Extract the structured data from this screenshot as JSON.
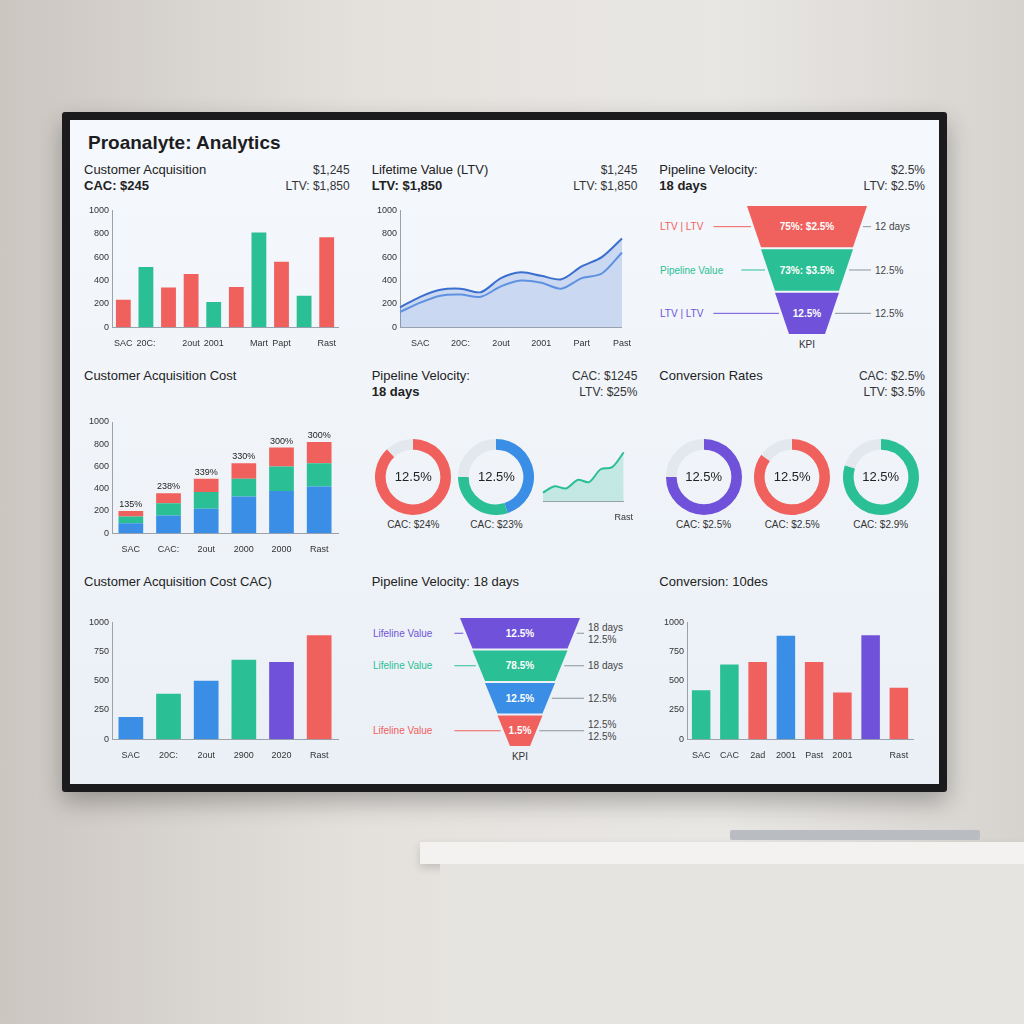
{
  "header": {
    "title": "Proanalyte: Analytics"
  },
  "chart_data": [
    {
      "type": "bar",
      "title": "Customer Acquisition",
      "subtitle": "CAC: $245",
      "annotations": [
        "$1,245",
        "LTV: $1,850"
      ],
      "categories": [
        "SAC",
        "20C:",
        null,
        "2out",
        "2001",
        null,
        "Mart",
        "Papt",
        null,
        "Rast"
      ],
      "values": [
        235,
        515,
        340,
        455,
        215,
        345,
        810,
        560,
        270,
        770
      ],
      "colors": [
        "#f0605d",
        "#2bbf95",
        "#f0605d",
        "#f0605d",
        "#2bbf95",
        "#f0605d",
        "#2bbf95",
        "#f0605d",
        "#2bbf95",
        "#f0605d"
      ],
      "ylim": [
        0,
        1000
      ],
      "yticks": [
        0,
        200,
        400,
        600,
        800,
        1000
      ],
      "grid": false
    },
    {
      "type": "line",
      "title": "Lifetime Value (LTV)",
      "subtitle": "LTV: $1,850",
      "annotations": [
        "$1,245",
        "LTV: $1,850"
      ],
      "categories": [
        null,
        "SAC",
        null,
        "20C:",
        null,
        "2out",
        null,
        "2001",
        null,
        "Part",
        null,
        "Past"
      ],
      "series": [
        {
          "type": "area",
          "color": "#3a6fd0",
          "values": [
            170,
            260,
            320,
            330,
            300,
            420,
            470,
            440,
            410,
            520,
            600,
            760
          ]
        },
        {
          "type": "line",
          "color": "#6a9be6",
          "values": [
            130,
            210,
            270,
            280,
            260,
            350,
            400,
            380,
            330,
            420,
            460,
            640
          ]
        }
      ],
      "ylim": [
        0,
        1000
      ],
      "yticks": [
        0,
        200,
        400,
        600,
        800,
        1000
      ],
      "grid": false
    },
    {
      "type": "funnel",
      "title": "Pipeline Velocity:",
      "subtitle": "18 days",
      "annotations": [
        "$2.5%",
        "LTV: $2.5%"
      ],
      "stages": [
        {
          "label": "LTV | LTV",
          "text": "75%: $2.5%",
          "color": "#f0605d",
          "notes": [
            "12 days"
          ]
        },
        {
          "label": "Pipeline Value",
          "text": "73%: $3.5%",
          "color": "#2bbf95",
          "notes": [
            "12.5%"
          ]
        },
        {
          "label": "LTV | LTV",
          "text": "12.5%",
          "color": "#6f52d9",
          "notes": [
            "12.5%"
          ]
        }
      ],
      "footer": "KPI"
    },
    {
      "type": "bar",
      "title": "Customer Acquisition Cost",
      "stacked": true,
      "categories": [
        "SAC",
        "CAC:",
        "2out",
        "2000",
        "2000",
        "Rast"
      ],
      "series": [
        {
          "color": "#3a8ee6",
          "values": [
            90,
            160,
            220,
            330,
            380,
            420
          ]
        },
        {
          "color": "#2bbf95",
          "values": [
            60,
            110,
            150,
            160,
            220,
            210
          ]
        },
        {
          "color": "#f0605d",
          "values": [
            50,
            90,
            120,
            140,
            170,
            190
          ]
        }
      ],
      "top_labels": [
        "135%",
        "238%",
        "339%",
        "330%",
        "300%",
        "300%"
      ],
      "ylim": [
        0,
        1000
      ],
      "yticks": [
        0,
        200,
        400,
        600,
        800,
        1000
      ],
      "grid": false
    },
    {
      "type": "doughnut",
      "title": "Pipeline Velocity:",
      "subtitle": "18 days",
      "annotations": [
        "CAC: $1245",
        "LTV: $25%"
      ],
      "rings": [
        {
          "values": [
            88,
            12
          ],
          "colors": [
            "#f0605d",
            "#e3e7ee"
          ],
          "label": "12.5%",
          "caption": "CAC: $24%"
        },
        {
          "values": [
            45,
            30,
            25
          ],
          "colors": [
            "#3a8ee6",
            "#2bbf95",
            "#e3e7ee"
          ],
          "label": "12.5%",
          "caption": "CAC: $23%"
        }
      ],
      "inset": {
        "type": "area",
        "categories": [
          null,
          null,
          null,
          null,
          null,
          null,
          null,
          "Rast"
        ],
        "series": [
          {
            "type": "area",
            "color": "#2bbf95",
            "values": [
              8,
              14,
              12,
              20,
              18,
              30,
              32,
              46
            ]
          }
        ],
        "ylim": [
          0,
          50
        ],
        "tick_labels": "x"
      }
    },
    {
      "type": "doughnut",
      "title": "Conversion Rates",
      "annotations": [
        "CAC: $2.5%",
        "LTV: $3.5%"
      ],
      "rings": [
        {
          "values": [
            75,
            25
          ],
          "colors": [
            "#6f52d9",
            "#e3e7ee"
          ],
          "label": "12.5%",
          "caption": "CAC: $2.5%"
        },
        {
          "values": [
            85,
            15
          ],
          "colors": [
            "#f0605d",
            "#e3e7ee"
          ],
          "label": "12.5%",
          "caption": "CAC: $2.5%"
        },
        {
          "values": [
            80,
            20
          ],
          "colors": [
            "#2bbf95",
            "#e3e7ee"
          ],
          "label": "12.5%",
          "caption": "CAC: $2.9%"
        }
      ]
    },
    {
      "type": "bar",
      "title": "Customer Acquisition Cost CAC)",
      "categories": [
        "SAC",
        "20C:",
        "2out",
        "2900",
        "2020",
        "Rast"
      ],
      "values": [
        190,
        390,
        500,
        680,
        660,
        890
      ],
      "colors": [
        "#3a8ee6",
        "#2bbf95",
        "#3a8ee6",
        "#2bbf95",
        "#6f52d9",
        "#f0605d"
      ],
      "ylim": [
        0,
        1000
      ],
      "yticks": [
        0,
        250,
        500,
        750,
        1000
      ],
      "grid": false
    },
    {
      "type": "funnel",
      "title": "Pipeline Velocity: 18 days",
      "stages": [
        {
          "label": "Lifeline Value",
          "text": "12.5%",
          "color": "#6f52d9",
          "notes": [
            "18 days",
            "12.5%"
          ]
        },
        {
          "label": "Lifeline Value",
          "text": "78.5%",
          "color": "#2bbf95",
          "notes": [
            "18 days"
          ]
        },
        {
          "text": "12.5%",
          "color": "#3a8ee6",
          "notes": [
            "12.5%"
          ]
        },
        {
          "label": "Lifeline Value",
          "text": "1.5%",
          "color": "#f0605d",
          "notes": [
            "12.5%",
            "12.5%"
          ]
        }
      ],
      "footer": "KPI"
    },
    {
      "type": "bar",
      "title": "Conversion: 10des",
      "categories": [
        "SAC",
        "CAC",
        "2ad",
        "2001",
        "Past",
        "2001",
        null,
        "Rast"
      ],
      "values": [
        420,
        640,
        660,
        886,
        660,
        400,
        890,
        440
      ],
      "colors": [
        "#2bbf95",
        "#2bbf95",
        "#f0605d",
        "#3a8ee6",
        "#f0605d",
        "#f0605d",
        "#6f52d9",
        "#f0605d"
      ],
      "ylim": [
        0,
        1000
      ],
      "yticks": [
        0,
        250,
        500,
        750,
        1000
      ],
      "grid": false
    }
  ]
}
